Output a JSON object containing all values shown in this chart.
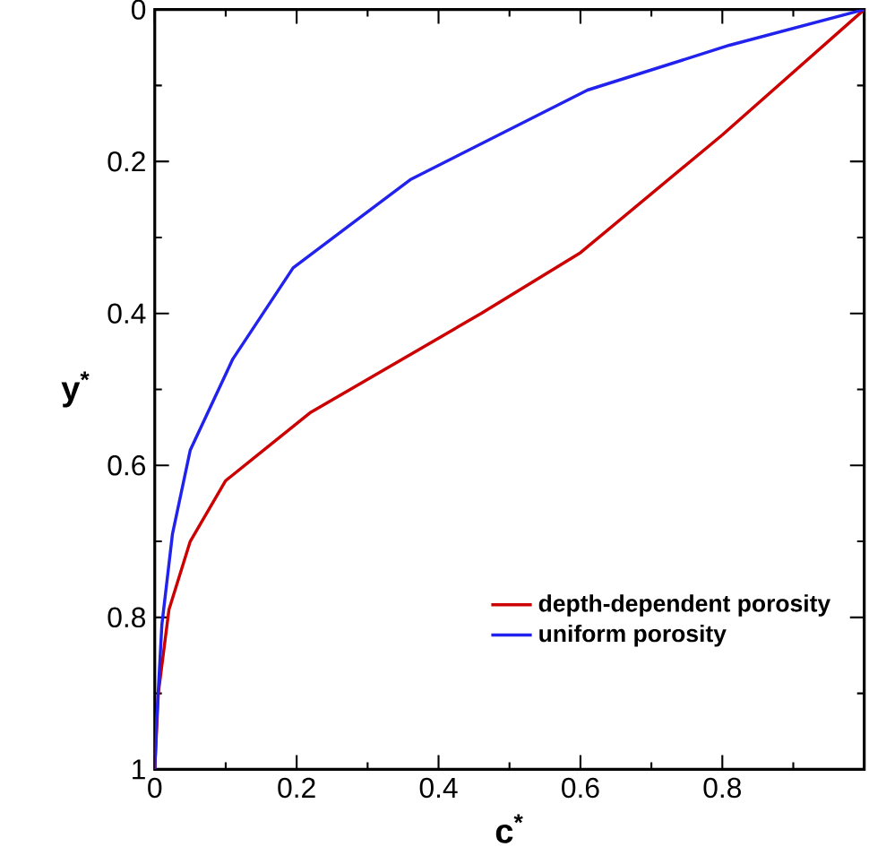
{
  "chart_data": {
    "type": "line",
    "xlabel": "c$^{*}$",
    "ylabel": "y$^{*}$",
    "xlim": [
      0,
      1
    ],
    "ylim": [
      1,
      0
    ],
    "xticks": [
      0,
      0.2,
      0.4,
      0.6,
      0.8,
      {
        "value": 1,
        "label": null
      }
    ],
    "yticks": [
      0,
      0.2,
      0.4,
      0.6,
      0.8,
      1
    ],
    "legend": "bottom right",
    "grid": false,
    "marker": "none",
    "line_style": "solid",
    "series": [
      {
        "name": "depth-dependent porosity",
        "color": "#cc0000",
        "x": [
          1,
          0.8,
          0.6,
          0.46,
          0.22,
          0.1,
          0.05,
          0.02,
          0.005,
          0
        ],
        "values": [
          0,
          0.165,
          0.32,
          0.4,
          0.53,
          0.62,
          0.7,
          0.79,
          0.9,
          1
        ]
      },
      {
        "name": "uniform porosity",
        "color": "#2222ee",
        "x": [
          1,
          0.81,
          0.61,
          0.36,
          0.195,
          0.11,
          0.05,
          0.025,
          0.01,
          0.003,
          0
        ],
        "values": [
          0,
          0.047,
          0.106,
          0.224,
          0.34,
          0.46,
          0.58,
          0.69,
          0.81,
          0.93,
          1
        ]
      }
    ]
  }
}
